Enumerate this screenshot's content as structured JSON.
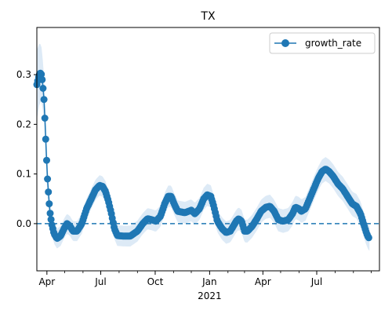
{
  "chart_data": {
    "type": "line",
    "title": "TX",
    "xlabel": "",
    "ylabel": "",
    "x_range": [
      "2020-03-15",
      "2021-10-15"
    ],
    "ylim": [
      -0.095,
      0.395
    ],
    "yticks": [
      0.0,
      0.1,
      0.2,
      0.3
    ],
    "ytick_labels": [
      "0.0",
      "0.1",
      "0.2",
      "0.3"
    ],
    "x_major_ticks": [
      {
        "date": "2020-04-01",
        "label": "Apr"
      },
      {
        "date": "2020-07-01",
        "label": "Jul"
      },
      {
        "date": "2020-10-01",
        "label": "Oct"
      },
      {
        "date": "2021-01-01",
        "label": "Jan"
      },
      {
        "date": "2021-04-01",
        "label": "Apr"
      },
      {
        "date": "2021-07-01",
        "label": "Jul"
      }
    ],
    "x_minor_ticks": [
      "2020-05-01",
      "2020-06-01",
      "2020-08-01",
      "2020-09-01",
      "2020-11-01",
      "2020-12-01",
      "2021-02-01",
      "2021-03-01",
      "2021-05-01",
      "2021-06-01",
      "2021-08-01",
      "2021-09-01",
      "2021-10-01"
    ],
    "year_label": {
      "date": "2021-01-01",
      "label": "2021"
    },
    "reference_line": {
      "y": 0.0,
      "style": "dashed"
    },
    "legend": {
      "position": "upper-right"
    },
    "series": [
      {
        "name": "growth_rate",
        "color": "#1f77b4",
        "band_color": "#cfe1f2",
        "band_halfwidth": [
          [
            "2020-03-15",
            0.07
          ],
          [
            "2020-04-10",
            0.02
          ],
          [
            "2020-05-10",
            0.02
          ],
          [
            "2021-10-10",
            0.025
          ],
          [
            "2021-10-15",
            0.04
          ]
        ],
        "points": [
          [
            "2020-03-15",
            0.28
          ],
          [
            "2020-03-17",
            0.29
          ],
          [
            "2020-03-19",
            0.3
          ],
          [
            "2020-03-21",
            0.303
          ],
          [
            "2020-03-23",
            0.3
          ],
          [
            "2020-03-25",
            0.28
          ],
          [
            "2020-03-27",
            0.25
          ],
          [
            "2020-03-29",
            0.2
          ],
          [
            "2020-03-31",
            0.14
          ],
          [
            "2020-04-02",
            0.09
          ],
          [
            "2020-04-04",
            0.055
          ],
          [
            "2020-04-06",
            0.025
          ],
          [
            "2020-04-09",
            0.0
          ],
          [
            "2020-04-13",
            -0.02
          ],
          [
            "2020-04-18",
            -0.03
          ],
          [
            "2020-04-24",
            -0.025
          ],
          [
            "2020-04-30",
            -0.01
          ],
          [
            "2020-05-05",
            0.0
          ],
          [
            "2020-05-10",
            -0.005
          ],
          [
            "2020-05-15",
            -0.015
          ],
          [
            "2020-05-22",
            -0.015
          ],
          [
            "2020-05-30",
            0.0
          ],
          [
            "2020-06-07",
            0.03
          ],
          [
            "2020-06-15",
            0.05
          ],
          [
            "2020-06-22",
            0.068
          ],
          [
            "2020-06-29",
            0.077
          ],
          [
            "2020-07-04",
            0.075
          ],
          [
            "2020-07-09",
            0.065
          ],
          [
            "2020-07-14",
            0.045
          ],
          [
            "2020-07-19",
            0.02
          ],
          [
            "2020-07-24",
            -0.01
          ],
          [
            "2020-07-29",
            -0.024
          ],
          [
            "2020-08-08",
            -0.025
          ],
          [
            "2020-08-20",
            -0.025
          ],
          [
            "2020-09-01",
            -0.015
          ],
          [
            "2020-09-10",
            0.0
          ],
          [
            "2020-09-18",
            0.01
          ],
          [
            "2020-09-25",
            0.008
          ],
          [
            "2020-10-02",
            0.005
          ],
          [
            "2020-10-10",
            0.015
          ],
          [
            "2020-10-17",
            0.04
          ],
          [
            "2020-10-23",
            0.055
          ],
          [
            "2020-10-28",
            0.055
          ],
          [
            "2020-11-02",
            0.04
          ],
          [
            "2020-11-08",
            0.025
          ],
          [
            "2020-11-20",
            0.022
          ],
          [
            "2020-12-01",
            0.027
          ],
          [
            "2020-12-07",
            0.02
          ],
          [
            "2020-12-15",
            0.03
          ],
          [
            "2020-12-22",
            0.05
          ],
          [
            "2020-12-28",
            0.058
          ],
          [
            "2021-01-03",
            0.055
          ],
          [
            "2021-01-08",
            0.035
          ],
          [
            "2021-01-14",
            0.005
          ],
          [
            "2021-01-22",
            -0.01
          ],
          [
            "2021-01-29",
            -0.018
          ],
          [
            "2021-02-05",
            -0.015
          ],
          [
            "2021-02-10",
            -0.005
          ],
          [
            "2021-02-15",
            0.005
          ],
          [
            "2021-02-19",
            0.01
          ],
          [
            "2021-02-24",
            0.005
          ],
          [
            "2021-03-01",
            -0.015
          ],
          [
            "2021-03-06",
            -0.015
          ],
          [
            "2021-03-14",
            -0.005
          ],
          [
            "2021-03-22",
            0.01
          ],
          [
            "2021-03-29",
            0.025
          ],
          [
            "2021-04-06",
            0.033
          ],
          [
            "2021-04-13",
            0.035
          ],
          [
            "2021-04-20",
            0.025
          ],
          [
            "2021-04-27",
            0.008
          ],
          [
            "2021-05-05",
            0.005
          ],
          [
            "2021-05-14",
            0.008
          ],
          [
            "2021-05-21",
            0.02
          ],
          [
            "2021-05-26",
            0.033
          ],
          [
            "2021-06-01",
            0.03
          ],
          [
            "2021-06-05",
            0.025
          ],
          [
            "2021-06-12",
            0.03
          ],
          [
            "2021-06-19",
            0.05
          ],
          [
            "2021-06-26",
            0.07
          ],
          [
            "2021-07-03",
            0.09
          ],
          [
            "2021-07-10",
            0.105
          ],
          [
            "2021-07-16",
            0.11
          ],
          [
            "2021-07-22",
            0.105
          ],
          [
            "2021-07-29",
            0.095
          ],
          [
            "2021-08-06",
            0.08
          ],
          [
            "2021-08-14",
            0.07
          ],
          [
            "2021-08-22",
            0.055
          ],
          [
            "2021-08-30",
            0.04
          ],
          [
            "2021-09-06",
            0.035
          ],
          [
            "2021-09-13",
            0.02
          ],
          [
            "2021-09-18",
            0.0
          ],
          [
            "2021-09-22",
            -0.015
          ],
          [
            "2021-09-25",
            -0.025
          ],
          [
            "2021-09-28",
            -0.03
          ]
        ]
      }
    ]
  }
}
